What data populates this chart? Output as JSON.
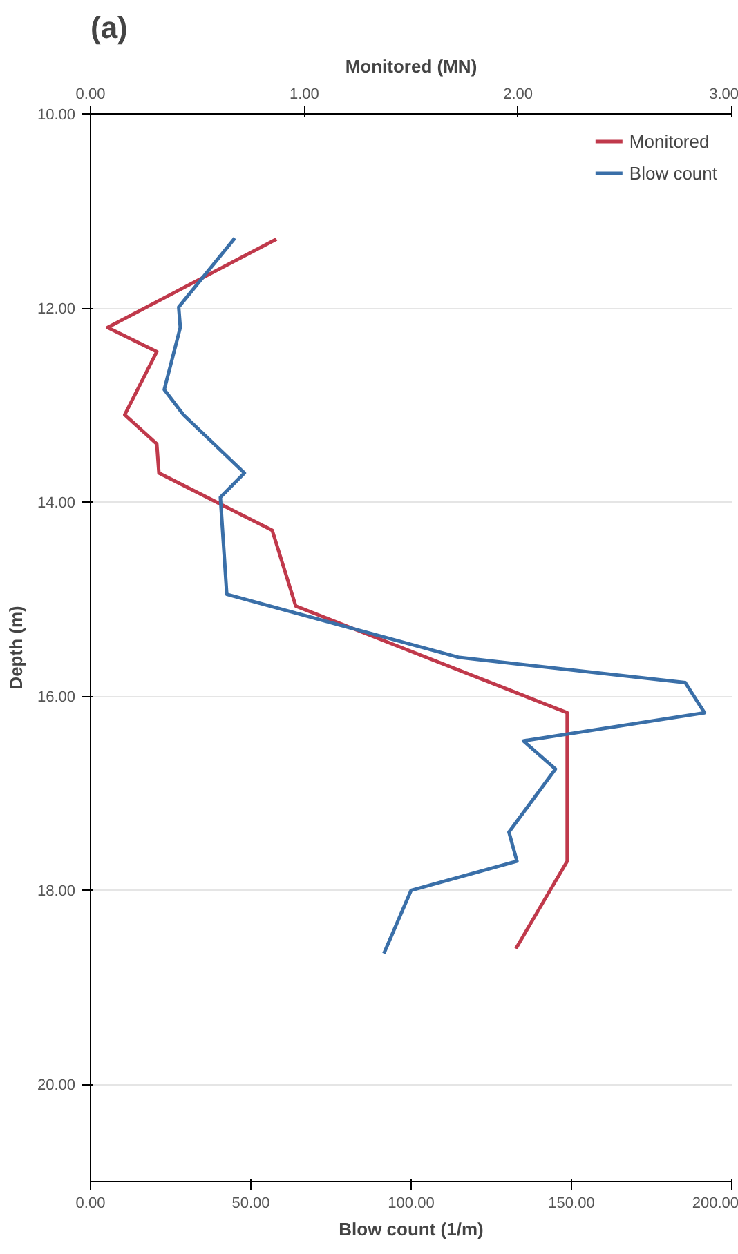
{
  "chart_data": {
    "type": "line",
    "title": "(a)",
    "xlabel": "Blow count (1/m)",
    "x2label": "Monitored (MN)",
    "ylabel": "Depth (m)",
    "xlim": [
      0,
      200
    ],
    "xticks": [
      {
        "value": 0,
        "label": "0.00"
      },
      {
        "value": 50,
        "label": "50.00"
      },
      {
        "value": 100,
        "label": "100.00"
      },
      {
        "value": 150,
        "label": "150.00"
      },
      {
        "value": 200,
        "label": "200.00"
      }
    ],
    "x2lim": [
      0,
      3
    ],
    "x2ticks": [
      {
        "value": 0,
        "label": "0.00"
      },
      {
        "value": 1,
        "label": "1.00"
      },
      {
        "value": 2,
        "label": "2.00"
      },
      {
        "value": 3,
        "label": "3.00"
      }
    ],
    "ylim": [
      21,
      10
    ],
    "yticks": [
      {
        "value": 10,
        "label": "10.00"
      },
      {
        "value": 12,
        "label": "12.00"
      },
      {
        "value": 14,
        "label": "14.00"
      },
      {
        "value": 16,
        "label": "16.00"
      },
      {
        "value": 18,
        "label": "18.00"
      },
      {
        "value": 20,
        "label": "20.00"
      }
    ],
    "grid": "y",
    "legend": "top right",
    "marker": "none",
    "line_style": "solid",
    "series": [
      {
        "name": "Monitored",
        "color": "#c0394b",
        "axis": "x2",
        "values": [
          11.29,
          12.2,
          12.45,
          13.1,
          13.4,
          13.7,
          14.29,
          15.07,
          16.17,
          17.7,
          18.6
        ],
        "x": [
          0.87,
          0.08,
          0.31,
          0.16,
          0.31,
          0.32,
          0.85,
          0.96,
          2.23,
          2.23,
          1.99
        ]
      },
      {
        "name": "Blow count",
        "color": "#3a6fa8",
        "values": [
          11.28,
          11.99,
          12.2,
          12.84,
          13.1,
          13.7,
          13.95,
          14.95,
          15.6,
          15.86,
          16.17,
          16.46,
          16.75,
          17.4,
          17.7,
          18.0,
          18.65
        ],
        "x": [
          45,
          27.5,
          28,
          23,
          29,
          48,
          40.5,
          42.5,
          115,
          185.5,
          191.5,
          135,
          145,
          130.5,
          133,
          100,
          91.5
        ]
      }
    ]
  }
}
